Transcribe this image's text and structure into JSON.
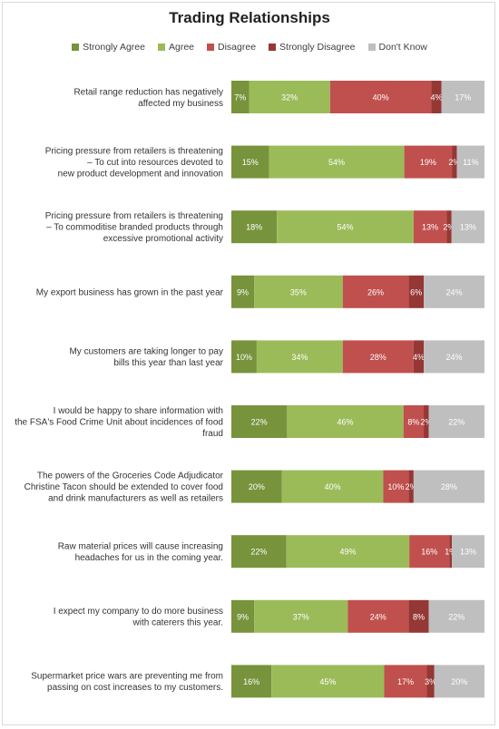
{
  "chart_data": {
    "type": "bar",
    "orientation": "horizontal",
    "stacked": true,
    "stack_mode": "percent",
    "title": "Trading Relationships",
    "legend_position": "top",
    "grid": false,
    "categories": [
      "Retail range reduction has negatively affected my business",
      "Pricing pressure from retailers is threatening – To cut into resources devoted to new product development and innovation",
      "Pricing pressure from retailers is threatening – To commoditise branded products through excessive promotional activity",
      "My export business has grown in the past year",
      "My customers are taking longer to pay bills this year than last year",
      "I would be happy to share information with the FSA's Food Crime Unit about incidences of food fraud",
      "The powers of the Groceries Code Adjudicator Christine Tacon should be extended to cover food and drink manufacturers as well as retailers",
      "Raw material prices will cause increasing headaches for us in the coming year.",
      "I expect my company to do more business with caterers this year.",
      "Supermarket price wars are preventing me from passing on cost increases to my customers."
    ],
    "category_lines": [
      [
        "Retail range reduction has negatively",
        "affected my business"
      ],
      [
        "Pricing pressure from retailers is threatening",
        "– To cut into resources devoted to",
        "new product development and innovation"
      ],
      [
        "Pricing pressure from retailers is threatening",
        "– To commoditise branded products through",
        "excessive promotional activity"
      ],
      [
        "My export business has grown in the past year"
      ],
      [
        "My customers are taking longer to pay",
        "bills this year than last year"
      ],
      [
        "I would be happy to share information with",
        "the FSA's Food Crime Unit about incidences of food",
        "fraud"
      ],
      [
        "The powers of the Groceries Code Adjudicator",
        "Christine Tacon should be extended to cover food",
        "and drink manufacturers as well as retailers"
      ],
      [
        "Raw material prices will cause increasing",
        "headaches for us in the coming year."
      ],
      [
        "I expect my company to do more business",
        "with caterers this year."
      ],
      [
        "Supermarket price wars are preventing me from",
        "passing on cost increases to my customers."
      ]
    ],
    "series": [
      {
        "name": "Strongly Agree",
        "color": "#77933c",
        "values": [
          7,
          15,
          18,
          9,
          10,
          22,
          20,
          22,
          9,
          16
        ]
      },
      {
        "name": "Agree",
        "color": "#9bbb59",
        "values": [
          32,
          54,
          54,
          35,
          34,
          46,
          40,
          49,
          37,
          45
        ]
      },
      {
        "name": "Disagree",
        "color": "#c0504d",
        "values": [
          40,
          19,
          13,
          26,
          28,
          8,
          10,
          16,
          24,
          17
        ]
      },
      {
        "name": "Strongly Disagree",
        "color": "#953735",
        "values": [
          4,
          2,
          2,
          6,
          4,
          2,
          2,
          1,
          8,
          3
        ]
      },
      {
        "name": "Don't Know",
        "color": "#bfbfbf",
        "values": [
          17,
          11,
          13,
          24,
          24,
          22,
          28,
          13,
          22,
          20
        ]
      }
    ]
  }
}
